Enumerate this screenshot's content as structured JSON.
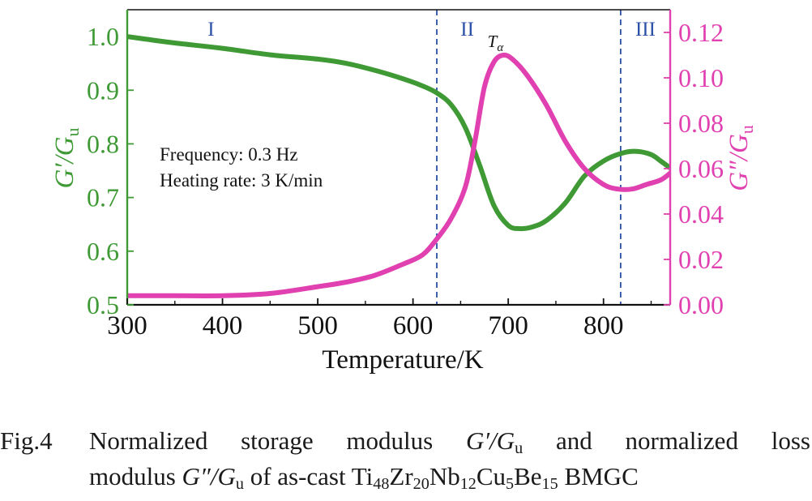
{
  "chart_data": {
    "type": "line",
    "xlabel": "Temperature/K",
    "ylabel_left": {
      "main": "G′/G",
      "sub": "u"
    },
    "ylabel_right": {
      "main": "G″/G",
      "sub": "u"
    },
    "xlim": [
      300,
      870
    ],
    "ylim_left": [
      0.5,
      1.05
    ],
    "ylim_right": [
      0.0,
      0.13
    ],
    "x_ticks": [
      300,
      400,
      500,
      600,
      700,
      800
    ],
    "y_ticks_left": [
      "0.5",
      "0.6",
      "0.7",
      "0.8",
      "0.9",
      "1.0"
    ],
    "y_ticks_right": [
      "0.00",
      "0.02",
      "0.04",
      "0.06",
      "0.08",
      "0.10",
      "0.12"
    ],
    "grid": false,
    "colors": {
      "storage": "#3f9a35",
      "loss": "#e040b0",
      "divider": "#2b50a8",
      "axis": "#111111"
    },
    "region_dividers": [
      625,
      818
    ],
    "region_labels": [
      {
        "text": "I",
        "x": 388
      },
      {
        "text": "II",
        "x": 657
      },
      {
        "text": "III",
        "x": 844
      }
    ],
    "peak_label": {
      "main": "T",
      "sub": "α",
      "x": 690
    },
    "annotations": [
      "Frequency: 0.3 Hz",
      "Heating rate: 3 K/min"
    ],
    "series": [
      {
        "axis": "left",
        "x": [
          300,
          320,
          350,
          400,
          450,
          500,
          530,
          560,
          590,
          610,
          625,
          640,
          655,
          670,
          685,
          700,
          712,
          725,
          740,
          760,
          780,
          800,
          820,
          835,
          850,
          860,
          870
        ],
        "values": [
          1.0,
          0.995,
          0.988,
          0.978,
          0.966,
          0.958,
          0.95,
          0.937,
          0.921,
          0.908,
          0.895,
          0.873,
          0.83,
          0.76,
          0.685,
          0.648,
          0.642,
          0.645,
          0.657,
          0.69,
          0.74,
          0.768,
          0.783,
          0.786,
          0.78,
          0.768,
          0.755
        ]
      },
      {
        "axis": "right",
        "x": [
          300,
          350,
          400,
          450,
          500,
          530,
          560,
          590,
          610,
          625,
          640,
          655,
          665,
          675,
          685,
          695,
          705,
          720,
          740,
          760,
          780,
          800,
          815,
          830,
          845,
          860,
          870
        ],
        "values": [
          0.004,
          0.004,
          0.004,
          0.005,
          0.008,
          0.01,
          0.013,
          0.018,
          0.022,
          0.029,
          0.038,
          0.052,
          0.072,
          0.096,
          0.107,
          0.11,
          0.108,
          0.101,
          0.088,
          0.072,
          0.06,
          0.053,
          0.051,
          0.051,
          0.053,
          0.055,
          0.058
        ]
      }
    ]
  },
  "caption": {
    "label": "Fig.4",
    "line1_words": [
      "Normalized",
      "storage",
      "modulus",
      "G′/G_u",
      "and",
      "normalized",
      "loss"
    ],
    "line2": {
      "lead": "modulus ",
      "symbol": "G″/G_u",
      "mid": " of as-cast ",
      "formula": "Ti_48Zr_20Nb_12Cu_5Be_15",
      "tail": " BMGC"
    }
  }
}
